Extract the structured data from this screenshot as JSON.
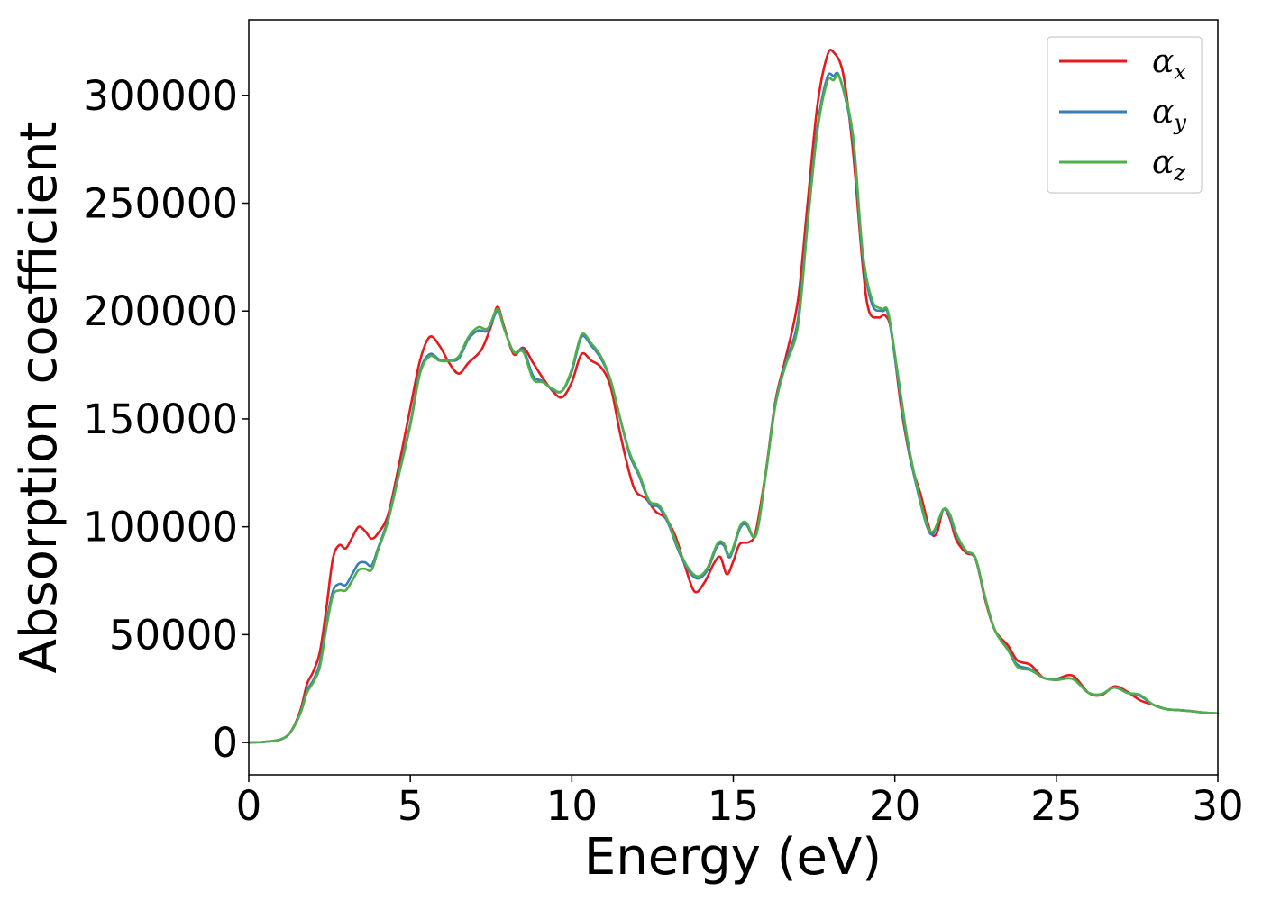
{
  "chart_data": {
    "type": "line",
    "xlabel": "Energy (eV)",
    "ylabel": "Absorption coefficient",
    "xlim": [
      0,
      30
    ],
    "ylim": [
      -15000,
      335000
    ],
    "xticks": [
      0,
      5,
      10,
      15,
      20,
      25,
      30
    ],
    "yticks": [
      0,
      50000,
      100000,
      150000,
      200000,
      250000,
      300000
    ],
    "grid": false,
    "legend_position": "top-right",
    "series": [
      {
        "name": "α",
        "subscript": "x",
        "color": "#e41a1c",
        "points": [
          [
            0,
            0
          ],
          [
            0.5,
            300
          ],
          [
            1.0,
            1500
          ],
          [
            1.3,
            5000
          ],
          [
            1.6,
            15000
          ],
          [
            1.8,
            27000
          ],
          [
            2.0,
            33000
          ],
          [
            2.2,
            42000
          ],
          [
            2.4,
            62000
          ],
          [
            2.6,
            85000
          ],
          [
            2.8,
            91500
          ],
          [
            3.0,
            90000
          ],
          [
            3.2,
            95000
          ],
          [
            3.4,
            100000
          ],
          [
            3.6,
            98000
          ],
          [
            3.8,
            94500
          ],
          [
            4.0,
            97000
          ],
          [
            4.3,
            105000
          ],
          [
            4.6,
            125000
          ],
          [
            5.0,
            155000
          ],
          [
            5.3,
            177000
          ],
          [
            5.6,
            188000
          ],
          [
            5.9,
            184000
          ],
          [
            6.2,
            176000
          ],
          [
            6.5,
            171000
          ],
          [
            6.8,
            176000
          ],
          [
            7.2,
            182000
          ],
          [
            7.5,
            193000
          ],
          [
            7.7,
            202000
          ],
          [
            7.9,
            193000
          ],
          [
            8.2,
            180000
          ],
          [
            8.5,
            183000
          ],
          [
            8.8,
            176000
          ],
          [
            9.1,
            169000
          ],
          [
            9.4,
            163000
          ],
          [
            9.7,
            160000
          ],
          [
            10.0,
            167000
          ],
          [
            10.3,
            180000
          ],
          [
            10.6,
            177000
          ],
          [
            10.9,
            174000
          ],
          [
            11.2,
            165000
          ],
          [
            11.5,
            143000
          ],
          [
            11.8,
            124000
          ],
          [
            12.0,
            116000
          ],
          [
            12.3,
            113000
          ],
          [
            12.6,
            107000
          ],
          [
            12.9,
            104000
          ],
          [
            13.2,
            96000
          ],
          [
            13.5,
            82000
          ],
          [
            13.8,
            70000
          ],
          [
            14.1,
            74000
          ],
          [
            14.4,
            83000
          ],
          [
            14.6,
            86000
          ],
          [
            14.8,
            78000
          ],
          [
            15.0,
            84000
          ],
          [
            15.2,
            92000
          ],
          [
            15.5,
            93000
          ],
          [
            15.7,
            98000
          ],
          [
            16.0,
            125000
          ],
          [
            16.3,
            158000
          ],
          [
            16.6,
            177000
          ],
          [
            17.0,
            205000
          ],
          [
            17.3,
            250000
          ],
          [
            17.6,
            295000
          ],
          [
            17.9,
            318000
          ],
          [
            18.1,
            320000
          ],
          [
            18.4,
            310000
          ],
          [
            18.7,
            275000
          ],
          [
            19.0,
            222000
          ],
          [
            19.2,
            200000
          ],
          [
            19.5,
            197000
          ],
          [
            19.7,
            198000
          ],
          [
            19.9,
            190000
          ],
          [
            20.2,
            155000
          ],
          [
            20.5,
            130000
          ],
          [
            20.8,
            115000
          ],
          [
            21.1,
            98000
          ],
          [
            21.3,
            97000
          ],
          [
            21.5,
            108000
          ],
          [
            21.7,
            104000
          ],
          [
            21.9,
            94000
          ],
          [
            22.2,
            88000
          ],
          [
            22.5,
            85000
          ],
          [
            22.8,
            66000
          ],
          [
            23.1,
            52000
          ],
          [
            23.5,
            45000
          ],
          [
            23.8,
            38000
          ],
          [
            24.2,
            36000
          ],
          [
            24.6,
            30000
          ],
          [
            25.0,
            29500
          ],
          [
            25.5,
            31000
          ],
          [
            26.0,
            23000
          ],
          [
            26.4,
            22000
          ],
          [
            26.8,
            26000
          ],
          [
            27.2,
            23500
          ],
          [
            27.6,
            19500
          ],
          [
            28.0,
            17500
          ],
          [
            28.4,
            15500
          ],
          [
            28.8,
            15000
          ],
          [
            29.2,
            14500
          ],
          [
            29.6,
            13800
          ],
          [
            30.0,
            13500
          ]
        ]
      },
      {
        "name": "α",
        "subscript": "y",
        "color": "#377eb8",
        "points": [
          [
            0,
            0
          ],
          [
            0.5,
            300
          ],
          [
            1.0,
            1500
          ],
          [
            1.3,
            5000
          ],
          [
            1.6,
            14000
          ],
          [
            1.8,
            24000
          ],
          [
            2.0,
            29000
          ],
          [
            2.2,
            37000
          ],
          [
            2.4,
            55000
          ],
          [
            2.6,
            70000
          ],
          [
            2.8,
            73500
          ],
          [
            3.0,
            73000
          ],
          [
            3.2,
            78000
          ],
          [
            3.4,
            83000
          ],
          [
            3.6,
            83500
          ],
          [
            3.8,
            82000
          ],
          [
            4.0,
            90000
          ],
          [
            4.3,
            103000
          ],
          [
            4.6,
            122000
          ],
          [
            5.0,
            148000
          ],
          [
            5.3,
            172000
          ],
          [
            5.6,
            180000
          ],
          [
            5.9,
            177500
          ],
          [
            6.2,
            177000
          ],
          [
            6.5,
            178000
          ],
          [
            6.8,
            187000
          ],
          [
            7.1,
            191000
          ],
          [
            7.4,
            191000
          ],
          [
            7.7,
            200000
          ],
          [
            7.9,
            192000
          ],
          [
            8.2,
            181000
          ],
          [
            8.5,
            182000
          ],
          [
            8.8,
            170000
          ],
          [
            9.1,
            167500
          ],
          [
            9.4,
            163500
          ],
          [
            9.7,
            163000
          ],
          [
            10.0,
            172000
          ],
          [
            10.3,
            188000
          ],
          [
            10.6,
            184000
          ],
          [
            10.9,
            178000
          ],
          [
            11.2,
            168000
          ],
          [
            11.5,
            150000
          ],
          [
            11.8,
            133000
          ],
          [
            12.1,
            123000
          ],
          [
            12.4,
            111000
          ],
          [
            12.7,
            109000
          ],
          [
            13.0,
            101000
          ],
          [
            13.3,
            89000
          ],
          [
            13.6,
            80000
          ],
          [
            13.9,
            76000
          ],
          [
            14.2,
            80000
          ],
          [
            14.5,
            91000
          ],
          [
            14.7,
            91500
          ],
          [
            14.9,
            86000
          ],
          [
            15.2,
            99000
          ],
          [
            15.4,
            101000
          ],
          [
            15.7,
            96000
          ],
          [
            16.0,
            124000
          ],
          [
            16.3,
            157000
          ],
          [
            16.6,
            175000
          ],
          [
            17.0,
            196000
          ],
          [
            17.3,
            242000
          ],
          [
            17.6,
            285000
          ],
          [
            17.9,
            308000
          ],
          [
            18.1,
            309000
          ],
          [
            18.3,
            308000
          ],
          [
            18.7,
            280000
          ],
          [
            19.0,
            226000
          ],
          [
            19.3,
            203000
          ],
          [
            19.6,
            200000
          ],
          [
            19.8,
            198000
          ],
          [
            20.1,
            168000
          ],
          [
            20.4,
            138000
          ],
          [
            20.7,
            117000
          ],
          [
            21.0,
            100000
          ],
          [
            21.2,
            97000
          ],
          [
            21.5,
            108000
          ],
          [
            21.7,
            105000
          ],
          [
            21.9,
            96000
          ],
          [
            22.2,
            89000
          ],
          [
            22.5,
            85000
          ],
          [
            22.8,
            67000
          ],
          [
            23.1,
            52000
          ],
          [
            23.5,
            43000
          ],
          [
            23.8,
            36000
          ],
          [
            24.2,
            34000
          ],
          [
            24.6,
            30000
          ],
          [
            25.0,
            29000
          ],
          [
            25.5,
            29500
          ],
          [
            26.0,
            23000
          ],
          [
            26.4,
            22500
          ],
          [
            26.8,
            25500
          ],
          [
            27.2,
            23000
          ],
          [
            27.6,
            21500
          ],
          [
            28.0,
            17500
          ],
          [
            28.4,
            15500
          ],
          [
            28.8,
            15000
          ],
          [
            29.2,
            14500
          ],
          [
            29.6,
            13800
          ],
          [
            30.0,
            13500
          ]
        ]
      },
      {
        "name": "α",
        "subscript": "z",
        "color": "#4daf4a",
        "points": [
          [
            0,
            0
          ],
          [
            0.5,
            300
          ],
          [
            1.0,
            1500
          ],
          [
            1.3,
            5000
          ],
          [
            1.6,
            13500
          ],
          [
            1.8,
            23000
          ],
          [
            2.0,
            28000
          ],
          [
            2.2,
            35000
          ],
          [
            2.4,
            53000
          ],
          [
            2.6,
            68000
          ],
          [
            2.8,
            70500
          ],
          [
            3.0,
            70500
          ],
          [
            3.2,
            75000
          ],
          [
            3.4,
            80000
          ],
          [
            3.6,
            80500
          ],
          [
            3.8,
            80000
          ],
          [
            4.0,
            89000
          ],
          [
            4.3,
            102000
          ],
          [
            4.6,
            121000
          ],
          [
            5.0,
            147000
          ],
          [
            5.3,
            171000
          ],
          [
            5.6,
            179000
          ],
          [
            5.9,
            177000
          ],
          [
            6.2,
            177000
          ],
          [
            6.5,
            179000
          ],
          [
            6.8,
            188000
          ],
          [
            7.1,
            192500
          ],
          [
            7.4,
            192000
          ],
          [
            7.7,
            201000
          ],
          [
            7.9,
            192000
          ],
          [
            8.2,
            181000
          ],
          [
            8.5,
            181000
          ],
          [
            8.8,
            168500
          ],
          [
            9.1,
            167000
          ],
          [
            9.4,
            164000
          ],
          [
            9.7,
            163000
          ],
          [
            10.0,
            173000
          ],
          [
            10.3,
            189000
          ],
          [
            10.6,
            185000
          ],
          [
            10.9,
            179000
          ],
          [
            11.2,
            168000
          ],
          [
            11.5,
            150000
          ],
          [
            11.8,
            134000
          ],
          [
            12.1,
            124000
          ],
          [
            12.4,
            112000
          ],
          [
            12.7,
            110000
          ],
          [
            13.0,
            102000
          ],
          [
            13.3,
            90000
          ],
          [
            13.6,
            81000
          ],
          [
            13.9,
            77000
          ],
          [
            14.2,
            81000
          ],
          [
            14.5,
            92000
          ],
          [
            14.7,
            92500
          ],
          [
            14.9,
            87000
          ],
          [
            15.2,
            100000
          ],
          [
            15.4,
            102000
          ],
          [
            15.7,
            96000
          ],
          [
            16.0,
            124000
          ],
          [
            16.3,
            156000
          ],
          [
            16.6,
            174000
          ],
          [
            17.0,
            193000
          ],
          [
            17.3,
            240000
          ],
          [
            17.6,
            283000
          ],
          [
            17.9,
            306000
          ],
          [
            18.1,
            307000
          ],
          [
            18.3,
            308000
          ],
          [
            18.7,
            282000
          ],
          [
            19.0,
            228000
          ],
          [
            19.3,
            205000
          ],
          [
            19.6,
            201000
          ],
          [
            19.8,
            199000
          ],
          [
            20.1,
            170000
          ],
          [
            20.4,
            140000
          ],
          [
            20.7,
            118000
          ],
          [
            21.0,
            101000
          ],
          [
            21.2,
            98000
          ],
          [
            21.5,
            108000
          ],
          [
            21.7,
            106000
          ],
          [
            21.9,
            97000
          ],
          [
            22.2,
            89000
          ],
          [
            22.5,
            85500
          ],
          [
            22.8,
            67000
          ],
          [
            23.1,
            52000
          ],
          [
            23.5,
            43000
          ],
          [
            23.8,
            35000
          ],
          [
            24.2,
            33500
          ],
          [
            24.6,
            30000
          ],
          [
            25.0,
            29000
          ],
          [
            25.5,
            29500
          ],
          [
            26.0,
            23000
          ],
          [
            26.4,
            22500
          ],
          [
            26.8,
            25500
          ],
          [
            27.2,
            23000
          ],
          [
            27.6,
            22000
          ],
          [
            28.0,
            17500
          ],
          [
            28.4,
            15500
          ],
          [
            28.8,
            15000
          ],
          [
            29.2,
            14500
          ],
          [
            29.6,
            13800
          ],
          [
            30.0,
            13500
          ]
        ]
      }
    ]
  }
}
